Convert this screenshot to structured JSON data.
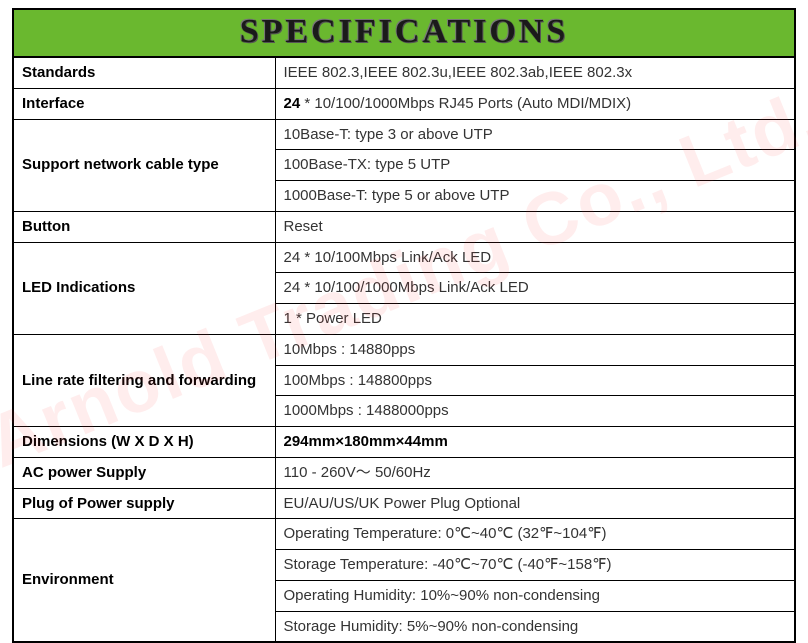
{
  "header": {
    "title": "SPECIFICATIONS"
  },
  "watermark": {
    "text": "Arnold Trading Co., Ltd."
  },
  "rows": [
    {
      "label": "Standards",
      "values": [
        "IEEE 802.3,IEEE 802.3u,IEEE 802.3ab,IEEE 802.3x"
      ]
    },
    {
      "label": "Interface",
      "values": [
        ""
      ],
      "bold_prefix": "24",
      "after_prefix": " * 10/100/1000Mbps RJ45 Ports (Auto MDI/MDIX)"
    },
    {
      "label": "Support network cable type",
      "values": [
        "10Base-T: type 3 or above UTP",
        "100Base-TX: type 5 UTP",
        "1000Base-T: type 5 or above UTP"
      ]
    },
    {
      "label": "Button",
      "values": [
        "Reset"
      ]
    },
    {
      "label": "LED Indications",
      "values": [
        "24 * 10/100Mbps Link/Ack LED",
        "24 * 10/100/1000Mbps Link/Ack LED",
        "1 * Power LED"
      ]
    },
    {
      "label": "Line rate filtering and forwarding",
      "values": [
        "10Mbps : 14880pps",
        "100Mbps : 148800pps",
        "1000Mbps : 1488000pps"
      ]
    },
    {
      "label": "Dimensions (W X D X H)",
      "values": [
        "294mm×180mm×44mm"
      ],
      "bold_all": true
    },
    {
      "label": "AC power Supply",
      "values": [
        "110 - 260V～ 50/60Hz"
      ]
    },
    {
      "label": "Plug of Power supply",
      "values": [
        "EU/AU/US/UK Power Plug Optional"
      ]
    },
    {
      "label": "Environment",
      "values": [
        "Operating Temperature: 0℃~40℃ (32℉~104℉)",
        "Storage Temperature: -40℃~70℃ (-40℉~158℉)",
        "Operating Humidity: 10%~90% non-condensing",
        "Storage Humidity: 5%~90% non-condensing"
      ]
    }
  ],
  "style": {
    "header_bg": "#6ab82f",
    "border_color": "#000000",
    "watermark_color": "rgba(255,60,60,0.09)",
    "font_label_size": 15,
    "font_value_size": 15,
    "title_size": 34,
    "label_col_width": 262
  }
}
